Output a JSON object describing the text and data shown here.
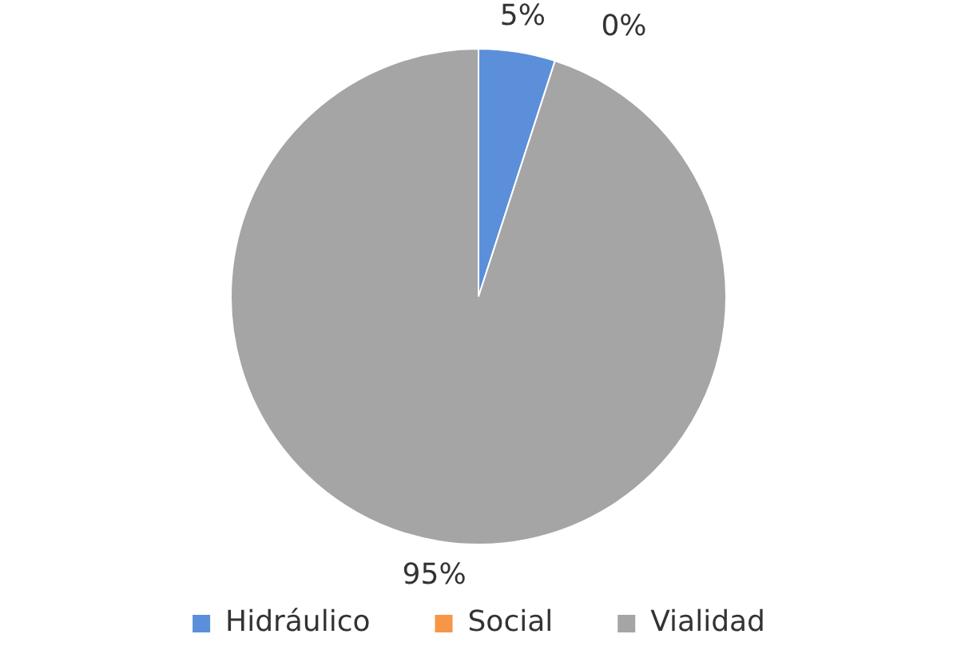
{
  "chart_data": {
    "type": "pie",
    "categories": [
      "Hidráulico",
      "Social",
      "Vialidad"
    ],
    "values": [
      5,
      0,
      95
    ],
    "colors": [
      "#5b8fd9",
      "#f79646",
      "#a5a5a5"
    ],
    "value_labels": [
      "5%",
      "0%",
      "95%"
    ],
    "legend": "bottom"
  }
}
